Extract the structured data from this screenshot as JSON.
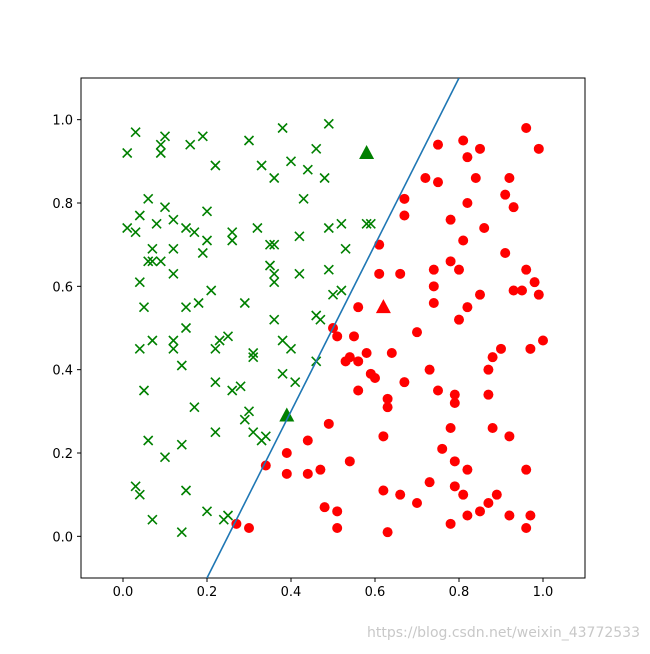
{
  "chart_data": {
    "type": "scatter",
    "xlim": [
      -0.1,
      1.1
    ],
    "ylim": [
      -0.1,
      1.1
    ],
    "xticks": [
      {
        "value": 0,
        "label": "0.0"
      },
      0.2,
      0.4,
      0.6,
      0.8,
      {
        "value": 1,
        "label": "1.0"
      }
    ],
    "yticks": [
      {
        "value": 0,
        "label": "0.0"
      },
      0.2,
      0.4,
      0.6,
      0.8,
      {
        "value": 1,
        "label": "1.0"
      }
    ],
    "annotation": "https://blog.csdn.net/weixin_43772533",
    "series": [
      {
        "kind": "scatter",
        "marker": "x",
        "color": "#008000",
        "x": [
          0.01,
          0.03,
          0.09,
          0.1,
          0.09,
          0.19,
          0.16,
          0.22,
          0.3,
          0.38,
          0.49,
          0.33,
          0.36,
          0.4,
          0.44,
          0.46,
          0.48,
          0.43,
          0.06,
          0.1,
          0.12,
          0.15,
          0.08,
          0.04,
          0.01,
          0.03,
          0.2,
          0.17,
          0.2,
          0.26,
          0.26,
          0.32,
          0.35,
          0.36,
          0.42,
          0.49,
          0.52,
          0.53,
          0.58,
          0.59,
          0.07,
          0.12,
          0.06,
          0.07,
          0.09,
          0.19,
          0.35,
          0.36,
          0.42,
          0.49,
          0.04,
          0.12,
          0.36,
          0.21,
          0.52,
          0.5,
          0.05,
          0.15,
          0.18,
          0.29,
          0.15,
          0.36,
          0.46,
          0.47,
          0.07,
          0.04,
          0.12,
          0.12,
          0.22,
          0.23,
          0.25,
          0.38,
          0.4,
          0.31,
          0.31,
          0.14,
          0.46,
          0.05,
          0.22,
          0.26,
          0.28,
          0.38,
          0.41,
          0.17,
          0.3,
          0.29,
          0.22,
          0.31,
          0.33,
          0.34,
          0.06,
          0.14,
          0.1,
          0.03,
          0.04,
          0.15,
          0.2,
          0.25,
          0.24,
          0.07,
          0.14
        ],
        "y": [
          0.92,
          0.97,
          0.94,
          0.96,
          0.92,
          0.96,
          0.94,
          0.89,
          0.95,
          0.98,
          0.99,
          0.89,
          0.86,
          0.9,
          0.88,
          0.93,
          0.86,
          0.81,
          0.81,
          0.79,
          0.76,
          0.74,
          0.75,
          0.77,
          0.74,
          0.73,
          0.78,
          0.73,
          0.71,
          0.73,
          0.71,
          0.74,
          0.7,
          0.7,
          0.72,
          0.74,
          0.75,
          0.69,
          0.75,
          0.75,
          0.69,
          0.69,
          0.66,
          0.66,
          0.66,
          0.68,
          0.65,
          0.63,
          0.63,
          0.64,
          0.61,
          0.63,
          0.61,
          0.59,
          0.59,
          0.58,
          0.55,
          0.55,
          0.56,
          0.56,
          0.5,
          0.52,
          0.53,
          0.52,
          0.47,
          0.45,
          0.47,
          0.45,
          0.45,
          0.47,
          0.48,
          0.47,
          0.45,
          0.43,
          0.44,
          0.41,
          0.42,
          0.35,
          0.37,
          0.35,
          0.36,
          0.39,
          0.37,
          0.31,
          0.3,
          0.28,
          0.25,
          0.25,
          0.23,
          0.24,
          0.23,
          0.22,
          0.19,
          0.12,
          0.1,
          0.11,
          0.06,
          0.05,
          0.04,
          0.04,
          0.01
        ]
      },
      {
        "kind": "scatter",
        "marker": "o",
        "color": "#ff0000",
        "x": [
          0.96,
          0.75,
          0.81,
          0.82,
          0.85,
          0.99,
          0.72,
          0.75,
          0.84,
          0.92,
          0.91,
          0.93,
          0.67,
          0.82,
          0.67,
          0.78,
          0.86,
          0.81,
          0.61,
          0.91,
          0.78,
          0.61,
          0.66,
          0.74,
          0.8,
          0.96,
          0.98,
          0.74,
          0.93,
          0.95,
          0.99,
          0.85,
          0.74,
          0.82,
          0.56,
          0.8,
          0.5,
          0.51,
          0.55,
          0.7,
          1.0,
          0.97,
          0.9,
          0.88,
          0.54,
          0.58,
          0.64,
          0.53,
          0.56,
          0.59,
          0.6,
          0.67,
          0.73,
          0.87,
          0.56,
          0.75,
          0.79,
          0.79,
          0.63,
          0.63,
          0.87,
          0.49,
          0.88,
          0.78,
          0.92,
          0.44,
          0.62,
          0.76,
          0.39,
          0.34,
          0.54,
          0.79,
          0.82,
          0.96,
          0.39,
          0.44,
          0.47,
          0.73,
          0.79,
          0.62,
          0.81,
          0.66,
          0.89,
          0.7,
          0.87,
          0.85,
          0.48,
          0.51,
          0.92,
          0.97,
          0.51,
          0.82,
          0.78,
          0.96,
          0.63,
          0.27,
          0.3
        ],
        "y": [
          0.98,
          0.94,
          0.95,
          0.91,
          0.93,
          0.93,
          0.86,
          0.85,
          0.86,
          0.86,
          0.82,
          0.79,
          0.81,
          0.8,
          0.77,
          0.76,
          0.74,
          0.71,
          0.7,
          0.68,
          0.66,
          0.63,
          0.63,
          0.64,
          0.64,
          0.64,
          0.61,
          0.6,
          0.59,
          0.59,
          0.58,
          0.58,
          0.56,
          0.55,
          0.55,
          0.52,
          0.5,
          0.48,
          0.48,
          0.49,
          0.47,
          0.45,
          0.45,
          0.43,
          0.43,
          0.44,
          0.44,
          0.42,
          0.42,
          0.39,
          0.38,
          0.37,
          0.4,
          0.4,
          0.35,
          0.35,
          0.34,
          0.32,
          0.33,
          0.31,
          0.34,
          0.27,
          0.26,
          0.26,
          0.24,
          0.23,
          0.24,
          0.21,
          0.2,
          0.17,
          0.18,
          0.18,
          0.16,
          0.16,
          0.15,
          0.15,
          0.16,
          0.13,
          0.12,
          0.11,
          0.1,
          0.1,
          0.1,
          0.08,
          0.08,
          0.06,
          0.07,
          0.06,
          0.05,
          0.05,
          0.02,
          0.05,
          0.03,
          0.02,
          0.01,
          0.03,
          0.02
        ]
      },
      {
        "kind": "scatter",
        "marker": "^",
        "color": "#008000",
        "x": [
          0.58,
          0.39
        ],
        "y": [
          0.92,
          0.29
        ]
      },
      {
        "kind": "scatter",
        "marker": "^",
        "color": "#ff0000",
        "x": [
          0.62
        ],
        "y": [
          0.55
        ]
      },
      {
        "kind": "line",
        "color": "#1f77b4",
        "x": [
          0.2,
          0.8
        ],
        "y": [
          -0.1,
          1.1
        ]
      }
    ]
  }
}
